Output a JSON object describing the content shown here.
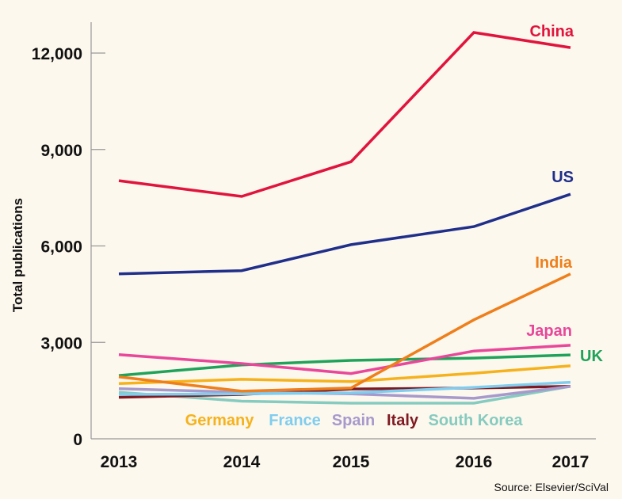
{
  "chart_data": {
    "type": "line",
    "title": "",
    "xlabel": "",
    "ylabel": "Total publications",
    "x": [
      "2013",
      "2014",
      "2015",
      "2016",
      "2017"
    ],
    "ylim": [
      0,
      12000
    ],
    "yticks": [
      0,
      3000,
      6000,
      9000,
      12000
    ],
    "ytick_labels": [
      "0",
      "3,000",
      "6,000",
      "9,000",
      "12,000"
    ],
    "grid": false,
    "legend": "direct labels",
    "series": [
      {
        "name": "China",
        "color": "#e0143c",
        "values": [
          8030,
          7540,
          8620,
          12640,
          12170
        ]
      },
      {
        "name": "US",
        "color": "#1f2f8a",
        "values": [
          5130,
          5230,
          6040,
          6600,
          7610
        ]
      },
      {
        "name": "India",
        "color": "#ee7f1a",
        "values": [
          1930,
          1480,
          1580,
          3700,
          5130
        ]
      },
      {
        "name": "Japan",
        "color": "#e8479a",
        "values": [
          2620,
          2340,
          2030,
          2730,
          2910
        ]
      },
      {
        "name": "UK",
        "color": "#1fa35a",
        "values": [
          1970,
          2300,
          2440,
          2510,
          2610
        ]
      },
      {
        "name": "Germany",
        "color": "#f5b21c",
        "values": [
          1720,
          1850,
          1780,
          2040,
          2270
        ]
      },
      {
        "name": "France",
        "color": "#7fcdef",
        "values": [
          1380,
          1400,
          1430,
          1600,
          1760
        ]
      },
      {
        "name": "Spain",
        "color": "#a899cc",
        "values": [
          1560,
          1450,
          1400,
          1260,
          1630
        ]
      },
      {
        "name": "Italy",
        "color": "#7f1a22",
        "values": [
          1290,
          1380,
          1550,
          1580,
          1630
        ]
      },
      {
        "name": "South Korea",
        "color": "#86cbbf",
        "values": [
          1450,
          1170,
          1110,
          1110,
          1630
        ]
      }
    ]
  },
  "source": "Source: Elsevier/SciVal"
}
